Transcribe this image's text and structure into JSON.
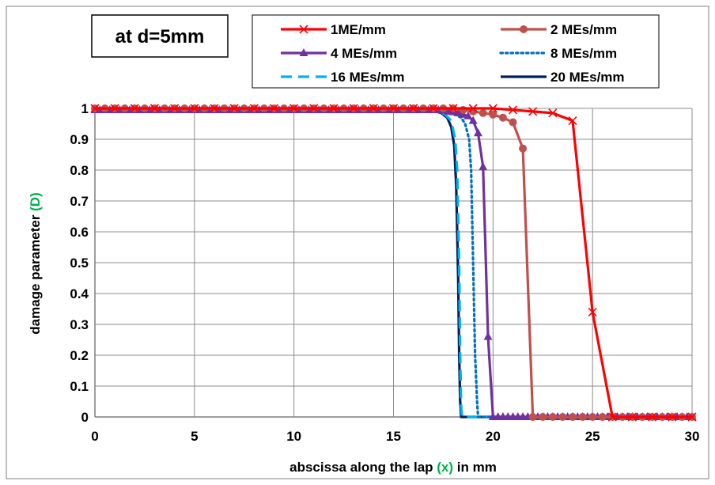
{
  "chart_data": {
    "type": "line",
    "annotation": "at d=5mm",
    "xlabel": {
      "prefix": "abscissa along the lap ",
      "symbol": "(x)",
      "suffix": " in mm"
    },
    "ylabel": {
      "prefix": "damage parameter ",
      "symbol": "(D)"
    },
    "symbol_color": "#00b050",
    "xlim": [
      0,
      30
    ],
    "ylim": [
      0,
      1
    ],
    "xticks": [
      "0",
      "5",
      "10",
      "15",
      "20",
      "25",
      "30"
    ],
    "yticks": [
      "0",
      "0.1",
      "0.2",
      "0.3",
      "0.4",
      "0.5",
      "0.6",
      "0.7",
      "0.8",
      "0.9",
      "1"
    ],
    "grid": true,
    "legend_position": "top",
    "series": [
      {
        "name": "1ME/mm",
        "color": "#ff0000",
        "dash": "solid",
        "marker": "x",
        "x": [
          0,
          1,
          2,
          3,
          4,
          5,
          6,
          7,
          8,
          9,
          10,
          11,
          12,
          13,
          14,
          15,
          16,
          17,
          18,
          19,
          20,
          21,
          22,
          23,
          24,
          25,
          26,
          27,
          28,
          29,
          30
        ],
        "y": [
          1,
          1,
          1,
          1,
          1,
          1,
          1,
          1,
          1,
          1,
          1,
          1,
          1,
          1,
          1,
          1,
          1,
          1,
          1,
          1,
          1,
          0.995,
          0.99,
          0.985,
          0.96,
          0.34,
          0,
          0,
          0,
          0,
          0
        ]
      },
      {
        "name": "2 MEs/mm",
        "color": "#c0504d",
        "dash": "solid",
        "marker": "circle",
        "x": [
          0,
          0.5,
          1,
          1.5,
          2,
          2.5,
          3,
          3.5,
          4,
          4.5,
          5,
          5.5,
          6,
          6.5,
          7,
          7.5,
          8,
          8.5,
          9,
          9.5,
          10,
          10.5,
          11,
          11.5,
          12,
          12.5,
          13,
          13.5,
          14,
          14.5,
          15,
          15.5,
          16,
          16.5,
          17,
          17.5,
          18,
          18.5,
          19,
          19.5,
          20,
          20.5,
          21,
          21.5,
          22,
          22.5,
          23,
          23.5,
          24,
          24.5,
          25,
          25.5,
          26,
          26.5,
          27,
          27.5,
          28,
          28.5,
          29,
          29.5,
          30
        ],
        "y": [
          1,
          1,
          1,
          1,
          1,
          1,
          1,
          1,
          1,
          1,
          1,
          1,
          1,
          1,
          1,
          1,
          1,
          1,
          1,
          1,
          1,
          1,
          1,
          1,
          1,
          1,
          1,
          1,
          1,
          1,
          1,
          1,
          1,
          1,
          1,
          1,
          1,
          0.995,
          0.99,
          0.985,
          0.98,
          0.97,
          0.955,
          0.87,
          0,
          0,
          0,
          0,
          0,
          0,
          0,
          0,
          0,
          0,
          0,
          0,
          0,
          0,
          0,
          0,
          0
        ]
      },
      {
        "name": "4 MEs/mm",
        "color": "#7030a0",
        "dash": "solid",
        "marker": "triangle",
        "x": [
          0,
          0.25,
          0.5,
          0.75,
          1,
          1.25,
          1.5,
          1.75,
          2,
          2.25,
          2.5,
          2.75,
          3,
          3.25,
          3.5,
          3.75,
          4,
          4.25,
          4.5,
          4.75,
          5,
          5.25,
          5.5,
          5.75,
          6,
          6.25,
          6.5,
          6.75,
          7,
          7.25,
          7.5,
          7.75,
          8,
          8.25,
          8.5,
          8.75,
          9,
          9.25,
          9.5,
          9.75,
          10,
          10.25,
          10.5,
          10.75,
          11,
          11.25,
          11.5,
          11.75,
          12,
          12.25,
          12.5,
          12.75,
          13,
          13.25,
          13.5,
          13.75,
          14,
          14.25,
          14.5,
          14.75,
          15,
          15.25,
          15.5,
          15.75,
          16,
          16.25,
          16.5,
          16.75,
          17,
          17.25,
          17.5,
          17.75,
          18,
          18.25,
          18.5,
          18.75,
          19,
          19.25,
          19.5,
          19.75,
          20,
          20.25,
          20.5,
          20.75,
          21,
          21.25,
          21.5,
          21.75,
          22,
          22.25,
          22.5,
          22.75,
          23,
          23.25,
          23.5,
          23.75,
          24,
          24.25,
          24.5,
          24.75,
          25,
          25.25,
          25.5,
          25.75,
          26,
          26.25,
          26.5,
          26.75,
          27,
          27.25,
          27.5,
          27.75,
          28,
          28.25,
          28.5,
          28.75,
          29,
          29.25,
          29.5,
          29.75,
          30
        ],
        "y": [
          0.995,
          0.995,
          0.995,
          0.995,
          0.995,
          0.995,
          0.995,
          0.995,
          0.995,
          0.995,
          0.995,
          0.995,
          0.995,
          0.995,
          0.995,
          0.995,
          0.995,
          0.995,
          0.995,
          0.995,
          0.995,
          0.995,
          0.995,
          0.995,
          0.995,
          0.995,
          0.995,
          0.995,
          0.995,
          0.995,
          0.995,
          0.995,
          0.995,
          0.995,
          0.995,
          0.995,
          0.995,
          0.995,
          0.995,
          0.995,
          0.995,
          0.995,
          0.995,
          0.995,
          0.995,
          0.995,
          0.995,
          0.995,
          0.995,
          0.995,
          0.995,
          0.995,
          0.995,
          0.995,
          0.995,
          0.995,
          0.995,
          0.995,
          0.995,
          0.995,
          0.995,
          0.995,
          0.995,
          0.995,
          0.995,
          0.995,
          0.995,
          0.995,
          0.995,
          0.995,
          0.993,
          0.99,
          0.988,
          0.985,
          0.98,
          0.975,
          0.96,
          0.92,
          0.81,
          0.26,
          0,
          0,
          0,
          0,
          0,
          0,
          0,
          0,
          0,
          0,
          0,
          0,
          0,
          0,
          0,
          0,
          0,
          0,
          0,
          0,
          0,
          0,
          0,
          0,
          0,
          0,
          0,
          0,
          0,
          0,
          0,
          0,
          0,
          0,
          0,
          0,
          0,
          0,
          0,
          0,
          0
        ]
      },
      {
        "name": "8 MEs/mm",
        "color": "#0070c0",
        "dash": "dot",
        "marker": "none",
        "x": [
          0,
          17.0,
          17.5,
          17.8,
          18.1,
          18.4,
          18.6,
          18.8,
          18.9,
          19.0,
          19.1,
          19.2,
          19.25,
          19.3,
          30
        ],
        "y": [
          0.995,
          0.995,
          0.99,
          0.985,
          0.98,
          0.97,
          0.95,
          0.9,
          0.8,
          0.5,
          0.2,
          0.05,
          0,
          0,
          0
        ]
      },
      {
        "name": "16 MEs/mm",
        "color": "#00b0f0",
        "dash": "dash",
        "marker": "none",
        "x": [
          0,
          16.8,
          17.2,
          17.6,
          17.9,
          18.1,
          18.2,
          18.3,
          18.35,
          18.4,
          18.45,
          30
        ],
        "y": [
          0.995,
          0.995,
          0.99,
          0.98,
          0.96,
          0.9,
          0.8,
          0.5,
          0.2,
          0.03,
          0,
          0
        ]
      },
      {
        "name": "20 MEs/mm",
        "color": "#002060",
        "dash": "solid",
        "marker": "none",
        "x": [
          0,
          16.5,
          17.0,
          17.4,
          17.7,
          17.9,
          18.05,
          18.15,
          18.25,
          18.3,
          18.35,
          18.4,
          30
        ],
        "y": [
          0.995,
          0.995,
          0.993,
          0.985,
          0.97,
          0.94,
          0.88,
          0.75,
          0.45,
          0.2,
          0.05,
          0,
          0
        ]
      }
    ]
  }
}
